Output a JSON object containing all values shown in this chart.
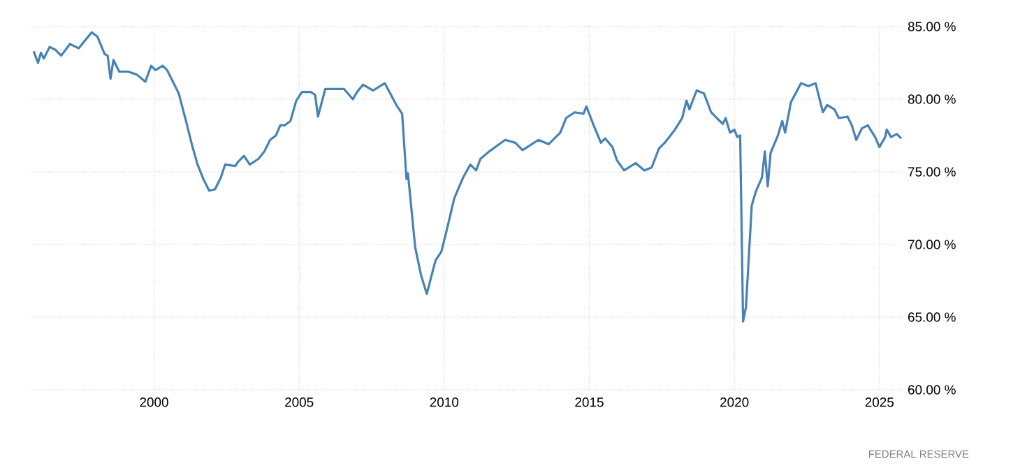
{
  "chart_data": {
    "type": "line",
    "x": [
      1995.85,
      1996.0,
      1996.1,
      1996.2,
      1996.4,
      1996.6,
      1996.8,
      1997.1,
      1997.4,
      1997.85,
      1998.05,
      1998.3,
      1998.4,
      1998.5,
      1998.6,
      1998.8,
      1999.1,
      1999.4,
      1999.7,
      1999.9,
      2000.05,
      2000.3,
      2000.45,
      2000.65,
      2000.85,
      2001.1,
      2001.3,
      2001.5,
      2001.7,
      2001.9,
      2002.1,
      2002.3,
      2002.45,
      2002.8,
      2002.9,
      2003.1,
      2003.3,
      2003.6,
      2003.8,
      2004.0,
      2004.2,
      2004.35,
      2004.5,
      2004.7,
      2004.9,
      2005.1,
      2005.4,
      2005.55,
      2005.65,
      2005.9,
      2006.55,
      2006.85,
      2007.0,
      2007.2,
      2007.55,
      2007.95,
      2008.35,
      2008.55,
      2008.7,
      2008.75,
      2009.0,
      2009.2,
      2009.4,
      2009.7,
      2009.9,
      2010.1,
      2010.35,
      2010.65,
      2010.9,
      2011.1,
      2011.25,
      2011.55,
      2012.1,
      2012.45,
      2012.7,
      2013.25,
      2013.6,
      2014.0,
      2014.2,
      2014.5,
      2014.8,
      2014.9,
      2015.15,
      2015.4,
      2015.55,
      2015.8,
      2015.95,
      2016.2,
      2016.6,
      2016.9,
      2017.15,
      2017.4,
      2017.6,
      2017.95,
      2018.2,
      2018.35,
      2018.45,
      2018.7,
      2018.95,
      2019.2,
      2019.4,
      2019.6,
      2019.7,
      2019.85,
      2020.0,
      2020.1,
      2020.2,
      2020.3,
      2020.4,
      2020.6,
      2020.75,
      2020.95,
      2021.05,
      2021.15,
      2021.25,
      2021.5,
      2021.65,
      2021.75,
      2021.95,
      2022.3,
      2022.55,
      2022.8,
      2023.05,
      2023.2,
      2023.45,
      2023.6,
      2023.9,
      2024.05,
      2024.2,
      2024.4,
      2024.6,
      2024.85,
      2025.0,
      2025.2,
      2025.25,
      2025.4,
      2025.6,
      2025.75
    ],
    "series": [
      {
        "color": "#4682b4",
        "values": [
          83.3,
          82.5,
          83.2,
          82.8,
          83.6,
          83.4,
          83.0,
          83.8,
          83.5,
          84.6,
          84.3,
          83.1,
          83.0,
          81.4,
          82.7,
          81.9,
          81.9,
          81.7,
          81.2,
          82.3,
          82.0,
          82.3,
          82.0,
          81.2,
          80.4,
          78.5,
          76.9,
          75.5,
          74.5,
          73.7,
          73.8,
          74.6,
          75.5,
          75.4,
          75.7,
          76.1,
          75.5,
          75.9,
          76.4,
          77.2,
          77.5,
          78.2,
          78.2,
          78.5,
          79.9,
          80.5,
          80.5,
          80.3,
          78.8,
          80.7,
          80.7,
          80.0,
          80.5,
          81.0,
          80.6,
          81.1,
          79.6,
          79.0,
          74.5,
          74.9,
          69.8,
          67.9,
          66.6,
          68.9,
          69.5,
          71.1,
          73.2,
          74.6,
          75.5,
          75.1,
          75.9,
          76.4,
          77.2,
          77.0,
          76.5,
          77.2,
          76.9,
          77.7,
          78.7,
          79.1,
          79.0,
          79.5,
          78.2,
          77.0,
          77.3,
          76.7,
          75.8,
          75.1,
          75.6,
          75.1,
          75.3,
          76.6,
          77.0,
          77.9,
          78.7,
          79.9,
          79.3,
          80.6,
          80.4,
          79.1,
          78.7,
          78.3,
          78.7,
          77.7,
          77.9,
          77.4,
          77.5,
          64.7,
          65.7,
          72.7,
          73.7,
          74.6,
          76.4,
          74.0,
          76.3,
          77.5,
          78.5,
          77.7,
          79.8,
          81.1,
          80.9,
          81.1,
          79.1,
          79.6,
          79.3,
          78.7,
          78.8,
          78.2,
          77.2,
          78.0,
          78.2,
          77.4,
          76.7,
          77.4,
          77.9,
          77.4,
          77.6,
          77.3
        ]
      }
    ],
    "xlim": [
      1995.75,
      2025.8
    ],
    "xticks": [
      2000,
      2005,
      2010,
      2015,
      2020,
      2025
    ],
    "ylim": [
      60,
      85
    ],
    "yticks": [
      {
        "value": 60,
        "label": "60.00 %"
      },
      {
        "value": 65,
        "label": "65.00 %"
      },
      {
        "value": 70,
        "label": "70.00 %"
      },
      {
        "value": 75,
        "label": "75.00 %"
      },
      {
        "value": 80,
        "label": "80.00 %"
      },
      {
        "value": 85,
        "label": "85.00 %"
      }
    ],
    "grid": true,
    "line_style": "solid",
    "marker": "none",
    "annotations": [
      "FEDERAL RESERVE"
    ]
  }
}
